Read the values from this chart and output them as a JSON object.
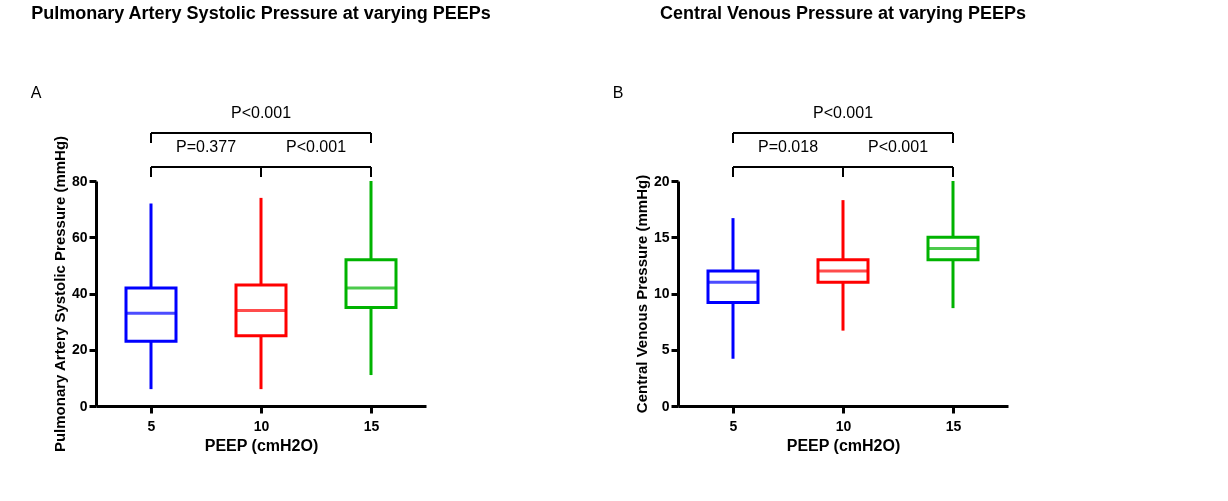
{
  "chart_data": [
    {
      "type": "box",
      "title": "Pulmonary Artery Systolic Pressure at varying PEEPs",
      "xlabel": "PEEP (cmH2O)",
      "ylabel": "Pulmonary Artery Systolic Pressure (mmHg)",
      "categories": [
        "5",
        "10",
        "15"
      ],
      "colors": [
        "#0000ff",
        "#ff0000",
        "#00b300"
      ],
      "ylim": [
        0,
        80
      ],
      "yticks": [
        0,
        20,
        40,
        60,
        80
      ],
      "boxes": [
        {
          "low": 6,
          "q1": 23,
          "median": 33,
          "q3": 42,
          "high": 72
        },
        {
          "low": 6,
          "q1": 25,
          "median": 34,
          "q3": 43,
          "high": 74
        },
        {
          "low": 11,
          "q1": 35,
          "median": 42,
          "q3": 52,
          "high": 80
        }
      ],
      "annotations": [
        "A",
        "P=0.377",
        "P<0.001",
        "P<0.001"
      ]
    },
    {
      "type": "box",
      "title": "Central Venous Pressure at varying PEEPs",
      "xlabel": "PEEP (cmH2O)",
      "ylabel": "Central Venous Pressure (mmHg)",
      "categories": [
        "5",
        "10",
        "15"
      ],
      "colors": [
        "#0000ff",
        "#ff0000",
        "#00b300"
      ],
      "ylim": [
        0,
        20
      ],
      "yticks": [
        0,
        5,
        10,
        15,
        20
      ],
      "boxes": [
        {
          "low": 4.2,
          "q1": 9.2,
          "median": 11,
          "q3": 12,
          "high": 16.7
        },
        {
          "low": 6.7,
          "q1": 11,
          "median": 12,
          "q3": 13,
          "high": 18.3
        },
        {
          "low": 8.7,
          "q1": 13,
          "median": 14,
          "q3": 15,
          "high": 20
        }
      ],
      "annotations": [
        "B",
        "P=0.018",
        "P<0.001",
        "P<0.001"
      ]
    }
  ]
}
